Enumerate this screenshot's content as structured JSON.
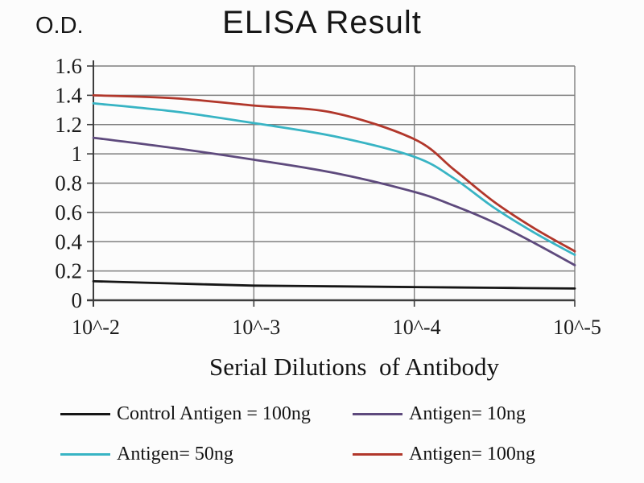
{
  "theme": {
    "background": "#fcfcfc",
    "grid_color": "#7f7f7f",
    "axis_color": "#3d3d3d",
    "text_color": "#1c1c1c"
  },
  "chart_data": {
    "type": "line",
    "title": "ELISA Result",
    "ylabel": "O.D.",
    "xlabel": "Serial Dilutions  of Antibody",
    "x_tick_labels": [
      "10^-2",
      "10^-3",
      "10^-4",
      "10^-5"
    ],
    "y_ticks": [
      0,
      0.2,
      0.4,
      0.6,
      0.8,
      1,
      1.2,
      1.4,
      1.6
    ],
    "y_tick_labels": [
      "0",
      "0.2",
      "0.4",
      "0.6",
      "0.8",
      "1",
      "1.2",
      "1.4",
      "1.6"
    ],
    "ylim": [
      0,
      1.6
    ],
    "grid": true,
    "legend_position": "bottom",
    "categories": [
      "10^-2",
      "10^-3",
      "10^-4",
      "10^-5"
    ],
    "series": [
      {
        "name": "Control Antigen = 100ng",
        "color": "#161616",
        "values": [
          0.13,
          0.1,
          0.09,
          0.08
        ],
        "points": [
          [
            0,
            0.13
          ],
          [
            0.5,
            0.115
          ],
          [
            1,
            0.1
          ],
          [
            1.5,
            0.095
          ],
          [
            2,
            0.09
          ],
          [
            2.5,
            0.085
          ],
          [
            3,
            0.08
          ]
        ]
      },
      {
        "name": "Antigen= 10ng",
        "color": "#5e4a7d",
        "values": [
          1.11,
          0.96,
          0.74,
          0.24
        ],
        "points": [
          [
            0,
            1.11
          ],
          [
            0.5,
            1.04
          ],
          [
            1,
            0.96
          ],
          [
            1.5,
            0.87
          ],
          [
            2,
            0.74
          ],
          [
            2.25,
            0.645
          ],
          [
            2.5,
            0.53
          ],
          [
            2.75,
            0.39
          ],
          [
            3,
            0.24
          ]
        ]
      },
      {
        "name": "Antigen= 50ng",
        "color": "#38b4c4",
        "values": [
          1.34,
          1.21,
          0.98,
          0.31
        ],
        "points": [
          [
            0,
            1.345
          ],
          [
            0.5,
            1.29
          ],
          [
            1,
            1.21
          ],
          [
            1.5,
            1.12
          ],
          [
            2,
            0.98
          ],
          [
            2.25,
            0.83
          ],
          [
            2.5,
            0.63
          ],
          [
            2.75,
            0.46
          ],
          [
            3,
            0.31
          ]
        ]
      },
      {
        "name": "Antigen= 100ng",
        "color": "#b1372b",
        "values": [
          1.4,
          1.33,
          1.1,
          0.33
        ],
        "points": [
          [
            0,
            1.4
          ],
          [
            0.5,
            1.38
          ],
          [
            1,
            1.33
          ],
          [
            1.5,
            1.28
          ],
          [
            2,
            1.1
          ],
          [
            2.25,
            0.89
          ],
          [
            2.5,
            0.67
          ],
          [
            2.75,
            0.49
          ],
          [
            3,
            0.335
          ]
        ]
      }
    ]
  }
}
